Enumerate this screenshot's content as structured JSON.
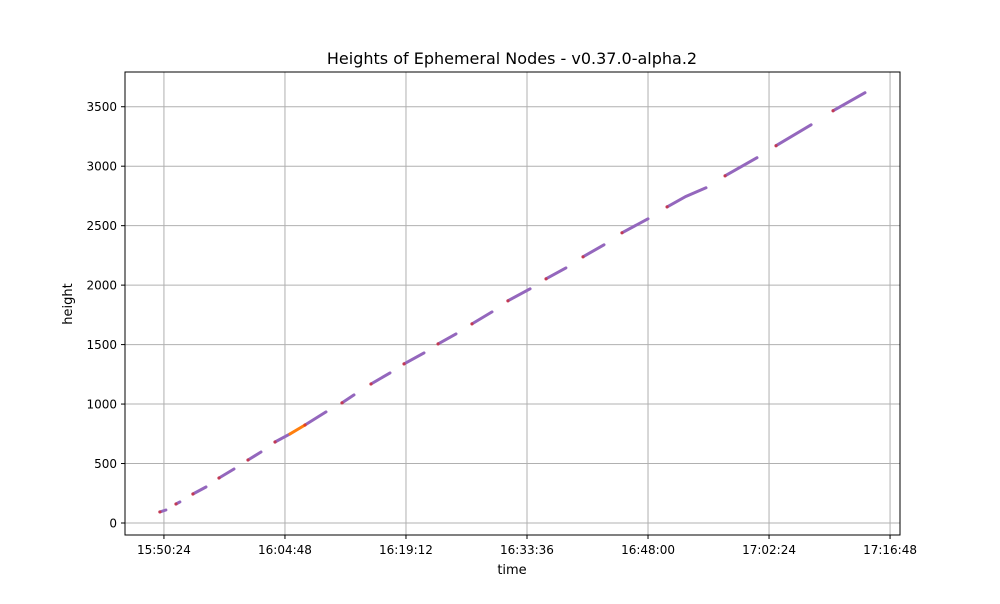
{
  "chart_data": {
    "type": "line",
    "title": "Heights of Ephemeral Nodes  -  v0.37.0-alpha.2",
    "xlabel": "time",
    "ylabel": "height",
    "xlim": [
      "15:45:46",
      "17:17:59"
    ],
    "ylim": [
      -101,
      3792
    ],
    "x_ticks": [
      "15:50:24",
      "16:04:48",
      "16:19:12",
      "16:33:36",
      "16:48:00",
      "17:02:24",
      "17:16:48"
    ],
    "y_ticks": [
      0,
      500,
      1000,
      1500,
      2000,
      2500,
      3000,
      3500
    ],
    "grid": true,
    "legend": "none",
    "colors": {
      "main": "#9467bd",
      "accent": "#ff7f0e",
      "start_marker": "#d62728"
    },
    "series": [
      {
        "color": "#9467bd",
        "segments": [
          [
            [
              "15:49:55",
              93
            ],
            [
              "15:50:38",
              109
            ]
          ],
          [
            [
              "15:51:50",
              160
            ],
            [
              "15:52:18",
              177
            ]
          ],
          [
            [
              "15:53:51",
              244
            ],
            [
              "15:55:24",
              303
            ]
          ],
          [
            [
              "15:56:57",
              378
            ],
            [
              "15:58:44",
              454
            ]
          ],
          [
            [
              "16:00:24",
              530
            ],
            [
              "16:01:57",
              597
            ]
          ],
          [
            [
              "16:03:37",
              681
            ],
            [
              "16:05:24",
              749
            ]
          ],
          [
            [
              "16:07:11",
              824
            ],
            [
              "16:09:41",
              934
            ]
          ],
          [
            [
              "16:11:35",
              1010
            ],
            [
              "16:13:01",
              1077
            ]
          ],
          [
            [
              "16:15:02",
              1169
            ],
            [
              "16:17:18",
              1262
            ]
          ],
          [
            [
              "16:18:58",
              1338
            ],
            [
              "16:21:21",
              1430
            ]
          ],
          [
            [
              "16:23:01",
              1506
            ],
            [
              "16:25:09",
              1590
            ]
          ],
          [
            [
              "16:27:03",
              1674
            ],
            [
              "16:29:26",
              1775
            ]
          ],
          [
            [
              "16:31:20",
              1868
            ],
            [
              "16:33:58",
              1969
            ]
          ],
          [
            [
              "16:35:52",
              2053
            ],
            [
              "16:38:14",
              2145
            ]
          ],
          [
            [
              "16:40:16",
              2238
            ],
            [
              "16:42:46",
              2339
            ]
          ],
          [
            [
              "16:44:54",
              2440
            ],
            [
              "16:48:00",
              2558
            ]
          ],
          [
            [
              "16:50:16",
              2658
            ],
            [
              "16:52:30",
              2745
            ],
            [
              "16:54:54",
              2818
            ]
          ],
          [
            [
              "16:57:10",
              2919
            ],
            [
              "17:00:58",
              3071
            ]
          ],
          [
            [
              "17:03:14",
              3172
            ],
            [
              "17:07:24",
              3348
            ]
          ],
          [
            [
              "17:10:01",
              3466
            ],
            [
              "17:13:49",
              3618
            ]
          ]
        ]
      },
      {
        "color": "#ff7f0e",
        "segments": [
          [
            [
              "16:05:24",
              749
            ],
            [
              "16:07:11",
              824
            ]
          ]
        ]
      }
    ]
  }
}
